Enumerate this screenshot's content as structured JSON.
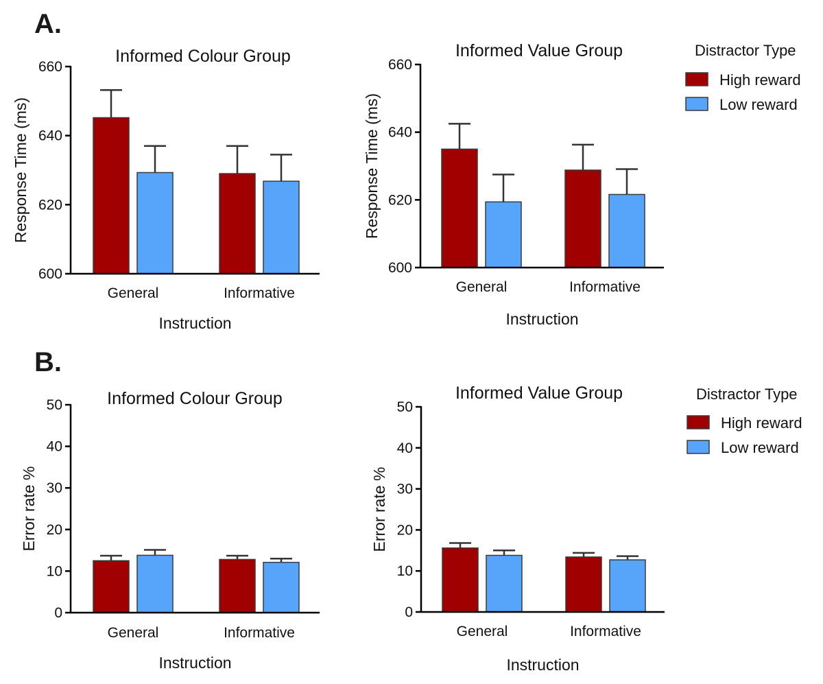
{
  "panel_labels": [
    "A.",
    "B."
  ],
  "colors": {
    "high_reward": "#A00000",
    "low_reward": "#56A5FA",
    "bar_edge": "#3a3a3a"
  },
  "chart_data": [
    {
      "type": "bar",
      "title": "Informed Colour Group",
      "xlabel": "Instruction",
      "ylabel": "Response Time (ms)",
      "ylim": [
        600,
        660
      ],
      "yticks": [
        600,
        620,
        640,
        660
      ],
      "categories": [
        "General",
        "Informative"
      ],
      "series": [
        {
          "name": "High reward",
          "values": [
            645.2,
            629.0
          ],
          "errors": [
            8.0,
            8.0
          ]
        },
        {
          "name": "Low reward",
          "values": [
            629.3,
            626.8
          ],
          "errors": [
            7.7,
            7.7
          ]
        }
      ],
      "legend": null
    },
    {
      "type": "bar",
      "title": "Informed Value Group",
      "xlabel": "Instruction",
      "ylabel": "Response Time (ms)",
      "ylim": [
        600,
        660
      ],
      "yticks": [
        600,
        620,
        640,
        660
      ],
      "categories": [
        "General",
        "Informative"
      ],
      "series": [
        {
          "name": "High reward",
          "values": [
            635.0,
            628.8
          ],
          "errors": [
            7.5,
            7.5
          ]
        },
        {
          "name": "Low reward",
          "values": [
            619.4,
            621.6
          ],
          "errors": [
            8.1,
            7.5
          ]
        }
      ],
      "legend": {
        "title": "Distractor Type",
        "entries": [
          "High reward",
          "Low reward"
        ],
        "placement": "right"
      }
    },
    {
      "type": "bar",
      "title": "Informed Colour Group",
      "xlabel": "Instruction",
      "ylabel": "Error rate %",
      "ylim": [
        0,
        50
      ],
      "yticks": [
        0,
        10,
        20,
        30,
        40,
        50
      ],
      "categories": [
        "General",
        "Informative"
      ],
      "series": [
        {
          "name": "High reward",
          "values": [
            12.5,
            12.8
          ],
          "errors": [
            1.2,
            0.9
          ]
        },
        {
          "name": "Low reward",
          "values": [
            13.8,
            12.1
          ],
          "errors": [
            1.3,
            0.9
          ]
        }
      ],
      "legend": null
    },
    {
      "type": "bar",
      "title": "Informed Value Group",
      "xlabel": "Instruction",
      "ylabel": "Error rate %",
      "ylim": [
        0,
        50
      ],
      "yticks": [
        0,
        10,
        20,
        30,
        40,
        50
      ],
      "categories": [
        "General",
        "Informative"
      ],
      "series": [
        {
          "name": "High reward",
          "values": [
            15.6,
            13.4
          ],
          "errors": [
            1.2,
            1.0
          ]
        },
        {
          "name": "Low reward",
          "values": [
            13.8,
            12.7
          ],
          "errors": [
            1.2,
            0.9
          ]
        }
      ],
      "legend": {
        "title": "Distractor Type",
        "entries": [
          "High reward",
          "Low reward"
        ],
        "placement": "right"
      }
    }
  ]
}
